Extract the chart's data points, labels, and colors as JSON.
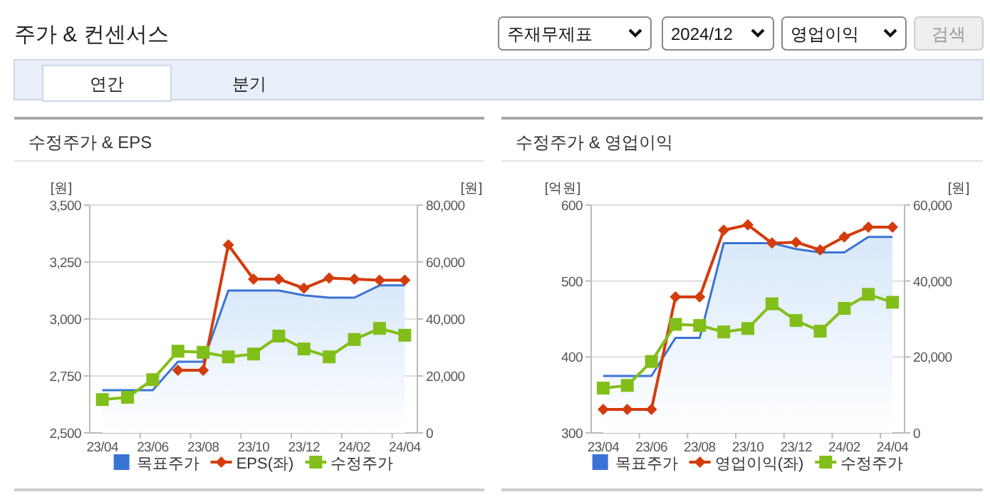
{
  "chart_data": [
    {
      "type": "other",
      "title": "주가 & 컨센서스",
      "annotations": [
        "주재무제표",
        "2024/12",
        "영업이익",
        "검색",
        "연간",
        "분기"
      ]
    },
    {
      "type": "line",
      "title": "수정주가 & EPS",
      "ylabel": "[원]",
      "y2label": "[원]",
      "categories": [
        "23/04",
        null,
        "23/06",
        null,
        "23/08",
        null,
        "23/10",
        null,
        "23/12",
        null,
        "24/02",
        null,
        "24/04"
      ],
      "ylim": [
        2500,
        3500
      ],
      "yticks": [
        {
          "value": 2500,
          "label": "2,500"
        },
        {
          "value": 2750,
          "label": "2,750"
        },
        {
          "value": 3000,
          "label": "3,000"
        },
        {
          "value": 3250,
          "label": "3,250"
        },
        {
          "value": 3500,
          "label": "3,500"
        }
      ],
      "y2lim": [
        0,
        80000
      ],
      "y2ticks": [
        0,
        {
          "value": 20000,
          "label": "20,000"
        },
        {
          "value": 40000,
          "label": "40,000"
        },
        {
          "value": 60000,
          "label": "60,000"
        },
        {
          "value": 80000,
          "label": "80,000"
        }
      ],
      "grid": "y",
      "legend": "bottom",
      "series": [
        {
          "name": "목표주가",
          "type": "area",
          "axis": "y2",
          "color": "#3a73d6",
          "values": [
            15000,
            15000,
            15000,
            25000,
            25000,
            50000,
            50000,
            50000,
            48300,
            47500,
            47500,
            51800,
            51800
          ]
        },
        {
          "name": "EPS(좌)",
          "type": "line",
          "axis": "y",
          "color": "#d33c0c",
          "marker": "diamond",
          "values": [
            null,
            null,
            null,
            2775,
            2775,
            3325,
            3175,
            3175,
            3135,
            3180,
            3175,
            3170,
            3170
          ]
        },
        {
          "name": "수정주가",
          "type": "line",
          "axis": "y2",
          "color": "#82be1a",
          "marker": "square",
          "values": [
            11700,
            12500,
            18700,
            28700,
            28300,
            26700,
            27700,
            34000,
            29500,
            26700,
            32800,
            36700,
            34300
          ]
        }
      ]
    },
    {
      "type": "line",
      "title": "수정주가 & 영업이익",
      "ylabel": "[억원]",
      "y2label": "[원]",
      "categories": [
        "23/04",
        null,
        "23/06",
        null,
        "23/08",
        null,
        "23/10",
        null,
        "23/12",
        null,
        "24/02",
        null,
        "24/04"
      ],
      "ylim": [
        300,
        600
      ],
      "yticks": [
        300,
        400,
        500,
        600
      ],
      "y2lim": [
        0,
        60000
      ],
      "y2ticks": [
        0,
        {
          "value": 20000,
          "label": "20,000"
        },
        {
          "value": 40000,
          "label": "40,000"
        },
        {
          "value": 60000,
          "label": "60,000"
        }
      ],
      "grid": "y",
      "legend": "bottom",
      "series": [
        {
          "name": "목표주가",
          "type": "area",
          "axis": "y2",
          "color": "#3a73d6",
          "values": [
            15000,
            15000,
            15000,
            25000,
            25000,
            50000,
            50000,
            50000,
            48400,
            47500,
            47500,
            51600,
            51600
          ]
        },
        {
          "name": "영업이익(좌)",
          "type": "line",
          "axis": "y",
          "color": "#d33c0c",
          "marker": "diamond",
          "values": [
            331,
            331,
            331,
            479,
            479,
            567,
            574,
            550,
            551,
            541,
            558,
            571,
            571
          ]
        },
        {
          "name": "수정주가",
          "type": "line",
          "axis": "y2",
          "color": "#82be1a",
          "marker": "square",
          "values": [
            11800,
            12500,
            18800,
            28600,
            28300,
            26600,
            27500,
            34000,
            29600,
            26800,
            32800,
            36500,
            34400
          ]
        }
      ]
    }
  ]
}
